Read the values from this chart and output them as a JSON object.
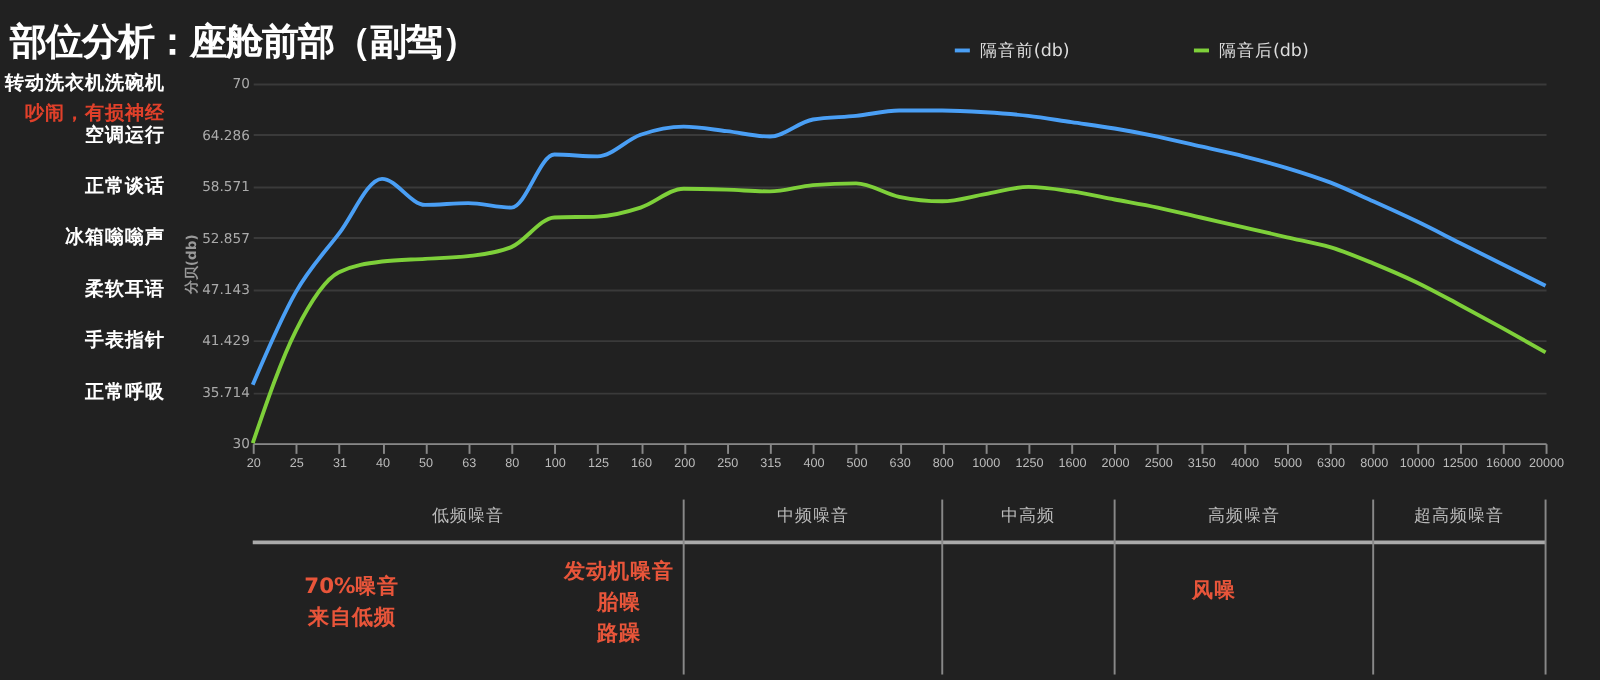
{
  "chart_data": {
    "type": "line",
    "title": "部位分析：座舱前部（副驾）",
    "ylabel": "分贝(db)",
    "categories": [
      "20",
      "25",
      "31",
      "40",
      "50",
      "63",
      "80",
      "100",
      "125",
      "160",
      "200",
      "250",
      "315",
      "400",
      "500",
      "630",
      "800",
      "1000",
      "1250",
      "1600",
      "2000",
      "2500",
      "3150",
      "4000",
      "5000",
      "6300",
      "8000",
      "10000",
      "12500",
      "16000",
      "20000"
    ],
    "series": [
      {
        "name": "隔音前(db)",
        "color": "#4a9ff5",
        "values": [
          36.5,
          46.8,
          53.3,
          59.4,
          56.5,
          56.7,
          56.2,
          62.1,
          61.9,
          64.3,
          65.2,
          64.7,
          64.1,
          66.0,
          66.4,
          67.0,
          67.0,
          66.8,
          66.4,
          65.7,
          65.0,
          64.1,
          63.0,
          61.9,
          60.6,
          59.0,
          56.9,
          54.7,
          52.3,
          49.9,
          47.5
        ]
      },
      {
        "name": "隔音后(db)",
        "color": "#7ed03a",
        "values": [
          30.0,
          42.5,
          49.0,
          50.2,
          50.5,
          50.8,
          51.8,
          55.1,
          55.2,
          56.2,
          58.3,
          58.2,
          58.0,
          58.7,
          58.9,
          57.4,
          56.9,
          57.7,
          58.5,
          58.0,
          57.1,
          56.2,
          55.1,
          54.0,
          52.9,
          51.8,
          50.0,
          47.9,
          45.4,
          42.8,
          40.1
        ]
      }
    ],
    "ylim": [
      30,
      70
    ],
    "yticks": [
      30,
      {
        "value": 35.714,
        "label": "35.714"
      },
      {
        "value": 41.429,
        "label": "41.429"
      },
      {
        "value": 47.143,
        "label": "47.143"
      },
      {
        "value": 52.857,
        "label": "52.857"
      },
      {
        "value": 58.571,
        "label": "58.571"
      },
      {
        "value": 64.286,
        "label": "64.286"
      },
      70
    ],
    "annotations": [
      "正常呼吸",
      "手表指针",
      "柔软耳语",
      "冰箱嗡嗡声",
      "正常谈话",
      "空调运行",
      "转动洗衣机洗碗机",
      "吵闹，有损神经",
      "低频噪音",
      "中频噪音",
      "中高频",
      "高频噪音",
      "超高频噪音",
      "70%噪音来自低频",
      "发动机噪音胎噪路躁",
      "风噪"
    ],
    "grid": "y",
    "legend": "top",
    "marker": "none",
    "line_style": "solid"
  }
}
